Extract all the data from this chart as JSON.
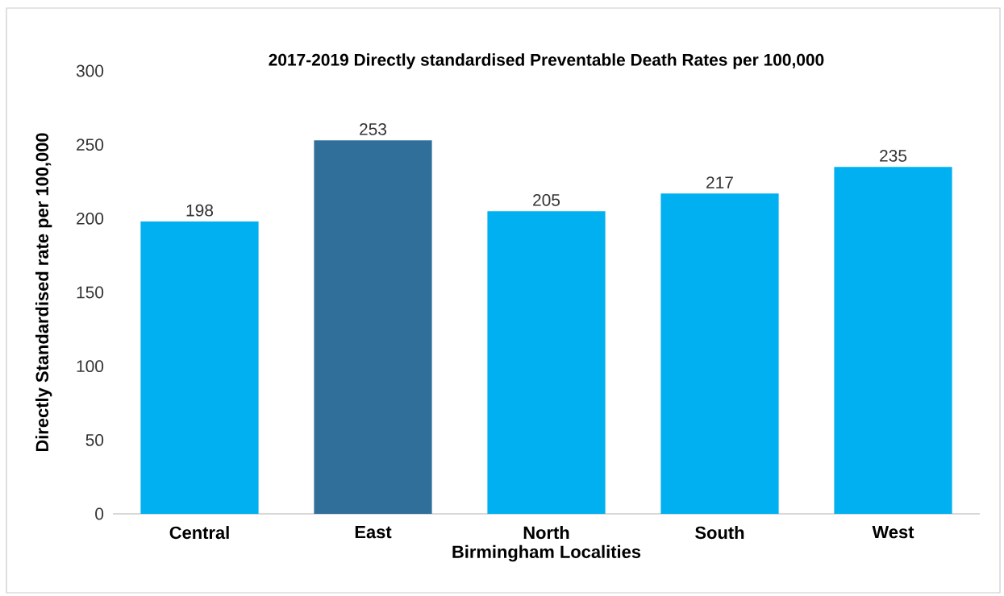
{
  "chart_data": {
    "type": "bar",
    "title": "2017-2019 Directly standardised Preventable Death  Rates per 100,000",
    "xlabel": "Birmingham Localities",
    "ylabel": "Directly Standardised rate per 100,000",
    "categories": [
      "Central",
      "East",
      "North",
      "South",
      "West"
    ],
    "values": [
      198,
      253,
      205,
      217,
      235
    ],
    "colors": [
      "#00b0f0",
      "#2f6f9a",
      "#00b0f0",
      "#00b0f0",
      "#00b0f0"
    ],
    "ylim": [
      0,
      300
    ],
    "yticks": [
      0,
      50,
      100,
      150,
      200,
      250,
      300
    ],
    "data_labels": true
  }
}
